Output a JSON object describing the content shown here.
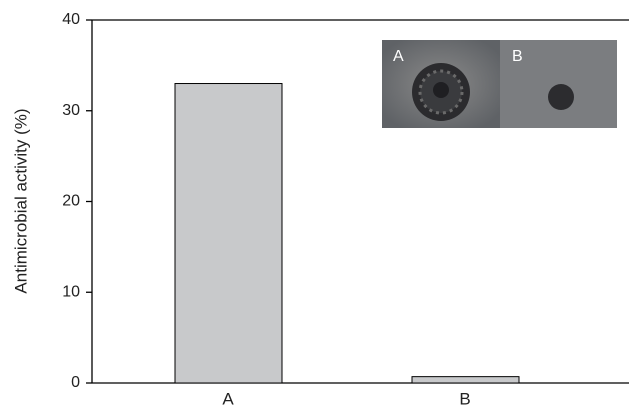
{
  "chart_data": {
    "type": "bar",
    "y_label": "Antimicrobial activity (%)",
    "categories": [
      "A",
      "B"
    ],
    "values": [
      33,
      0.7
    ],
    "color": "#c8c9cb",
    "ylim": [
      0,
      40
    ],
    "yticks": [
      0,
      10,
      20,
      30,
      40
    ],
    "inset_labels": [
      "A",
      "B"
    ]
  }
}
